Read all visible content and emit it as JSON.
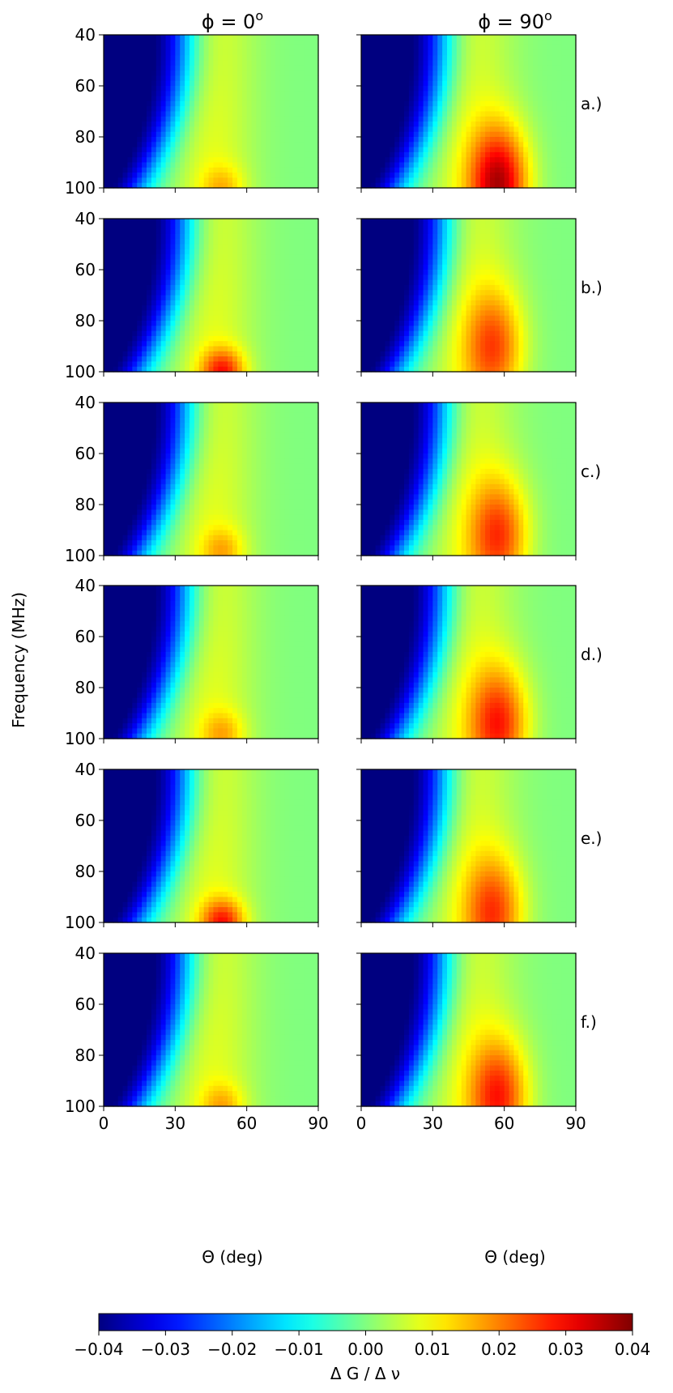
{
  "figure": {
    "column_titles": [
      "ϕ = 0",
      "ϕ = 90"
    ],
    "column_title_superscript": "o",
    "row_labels": [
      "a.)",
      "b.)",
      "c.)",
      "d.)",
      "e.)",
      "f.)"
    ],
    "ylabel": "Frequency (MHz)",
    "xlabel": "Θ (deg)",
    "colorbar_label": "Δ G / Δ ν"
  },
  "chart_data": {
    "type": "heatmap",
    "colormap": "jet",
    "x": {
      "min": 0,
      "max": 90,
      "ticks": [
        0,
        30,
        60,
        90
      ],
      "label": "Θ (deg)"
    },
    "y": {
      "min": 40,
      "max": 100,
      "ticks": [
        40,
        60,
        80,
        100
      ],
      "inverted": true,
      "label": "Frequency (MHz)"
    },
    "color_range": [
      -0.04,
      0.04
    ],
    "colorbar_ticks": [
      "−0.04",
      "−0.03",
      "−0.02",
      "−0.01",
      "0.00",
      "0.01",
      "0.02",
      "0.03",
      "0.04"
    ],
    "panels": [
      {
        "row": "a.)",
        "phi": 0,
        "hotspot": {
          "theta": 50,
          "freq": 100,
          "peak": 0.009
        }
      },
      {
        "row": "a.)",
        "phi": 90,
        "hotspot": {
          "theta": 58,
          "freq": 98,
          "peak": 0.032
        }
      },
      {
        "row": "b.)",
        "phi": 0,
        "hotspot": {
          "theta": 50,
          "freq": 100,
          "peak": 0.022
        }
      },
      {
        "row": "b.)",
        "phi": 90,
        "hotspot": {
          "theta": 56,
          "freq": 90,
          "peak": 0.02
        }
      },
      {
        "row": "c.)",
        "phi": 0,
        "hotspot": {
          "theta": 50,
          "freq": 98,
          "peak": 0.01
        }
      },
      {
        "row": "c.)",
        "phi": 90,
        "hotspot": {
          "theta": 58,
          "freq": 92,
          "peak": 0.022
        }
      },
      {
        "row": "d.)",
        "phi": 0,
        "hotspot": {
          "theta": 50,
          "freq": 98,
          "peak": 0.01
        }
      },
      {
        "row": "d.)",
        "phi": 90,
        "hotspot": {
          "theta": 58,
          "freq": 94,
          "peak": 0.024
        }
      },
      {
        "row": "e.)",
        "phi": 0,
        "hotspot": {
          "theta": 50,
          "freq": 100,
          "peak": 0.022
        }
      },
      {
        "row": "e.)",
        "phi": 90,
        "hotspot": {
          "theta": 56,
          "freq": 96,
          "peak": 0.021
        }
      },
      {
        "row": "f.)",
        "phi": 0,
        "hotspot": {
          "theta": 50,
          "freq": 100,
          "peak": 0.01
        }
      },
      {
        "row": "f.)",
        "phi": 90,
        "hotspot": {
          "theta": 58,
          "freq": 96,
          "peak": 0.024
        }
      }
    ]
  }
}
